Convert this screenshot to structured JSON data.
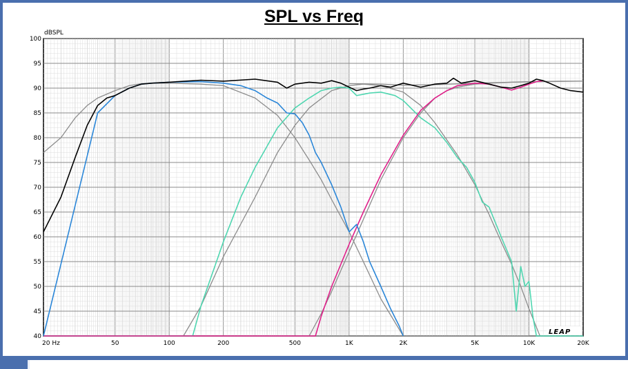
{
  "chart_data": {
    "type": "line",
    "title": "SPL vs Freq",
    "ylabel": "dBSPL",
    "xlabel": "",
    "x_scale": "log",
    "xlim": [
      20,
      20000
    ],
    "ylim": [
      40,
      100
    ],
    "x_ticks": [
      {
        "value": 20,
        "label": "20  Hz"
      },
      {
        "value": 50,
        "label": "50"
      },
      {
        "value": 100,
        "label": "100"
      },
      {
        "value": 200,
        "label": "200"
      },
      {
        "value": 500,
        "label": "500"
      },
      {
        "value": 1000,
        "label": "1K"
      },
      {
        "value": 2000,
        "label": "2K"
      },
      {
        "value": 5000,
        "label": "5K"
      },
      {
        "value": 10000,
        "label": "10K"
      },
      {
        "value": 20000,
        "label": "20K"
      }
    ],
    "y_ticks": [
      40,
      45,
      50,
      55,
      60,
      65,
      70,
      75,
      80,
      85,
      90,
      95,
      100
    ],
    "grid": true,
    "watermark": "LEAP",
    "colors": {
      "total": "#000000",
      "woofer": "#2a86d8",
      "midrange": "#4fd6b0",
      "tweeter": "#e0208a",
      "target": "#8c8c8c"
    },
    "series": [
      {
        "key": "total",
        "color": "#000000",
        "x": [
          20,
          25,
          30,
          35,
          40,
          45,
          50,
          60,
          70,
          80,
          100,
          150,
          200,
          300,
          400,
          450,
          500,
          600,
          700,
          800,
          900,
          1000,
          1100,
          1200,
          1300,
          1500,
          1700,
          2000,
          2500,
          3000,
          3500,
          3800,
          4200,
          5000,
          6000,
          7000,
          8000,
          9000,
          10000,
          11000,
          12000,
          13000,
          15000,
          17000,
          20000
        ],
        "y": [
          61,
          68,
          76,
          82.5,
          86.5,
          88,
          88.5,
          90,
          90.8,
          91,
          91.2,
          91.6,
          91.4,
          91.8,
          91.2,
          90,
          90.8,
          91.2,
          91,
          91.5,
          91,
          90.2,
          89.5,
          89.8,
          90,
          90.5,
          90.2,
          91,
          90.2,
          90.8,
          91,
          92,
          91,
          91.5,
          90.8,
          90.2,
          90,
          90.5,
          91,
          91.8,
          91.5,
          91,
          90,
          89.5,
          89.2
        ]
      },
      {
        "key": "woofer",
        "color": "#2a86d8",
        "x": [
          20,
          40,
          50,
          60,
          70,
          80,
          100,
          150,
          200,
          250,
          300,
          350,
          400,
          450,
          500,
          550,
          600,
          650,
          700,
          800,
          900,
          1000,
          1100,
          1200,
          1300,
          1500,
          1700,
          1900,
          2000
        ],
        "y": [
          40,
          85,
          88.5,
          90,
          90.8,
          91,
          91.2,
          91.3,
          91,
          90.5,
          89.5,
          88,
          87,
          85,
          84.8,
          83,
          80.5,
          77,
          75,
          70.5,
          66,
          61,
          62.5,
          59,
          55,
          50,
          45.5,
          42,
          40
        ]
      },
      {
        "key": "midrange",
        "color": "#4fd6b0",
        "x": [
          20,
          135,
          150,
          200,
          250,
          300,
          400,
          500,
          600,
          700,
          800,
          900,
          1000,
          1100,
          1300,
          1500,
          1800,
          2000,
          2500,
          3000,
          3500,
          4000,
          4500,
          5000,
          5500,
          6000,
          7000,
          8000,
          8500,
          9000,
          9500,
          10000,
          10500,
          11000,
          20000
        ],
        "y": [
          40,
          40,
          46,
          59,
          68,
          74,
          82,
          86,
          88,
          89.5,
          90,
          90.2,
          90,
          88.5,
          89,
          89.2,
          88.5,
          87.5,
          84,
          82,
          79,
          76,
          74,
          71,
          67,
          66,
          60,
          55,
          45,
          54,
          50,
          51,
          44,
          40,
          40
        ]
      },
      {
        "key": "tweeter",
        "color": "#e0208a",
        "x": [
          20,
          650,
          700,
          800,
          1000,
          1200,
          1500,
          2000,
          2500,
          3000,
          3500,
          4000,
          5000,
          6000,
          7000,
          8000,
          9000,
          10000,
          11000,
          12000
        ],
        "y": [
          40,
          40,
          44,
          50,
          58.5,
          65,
          72.5,
          80.5,
          85.5,
          88,
          89.5,
          90.5,
          91,
          90.8,
          90.2,
          89.6,
          90.2,
          90.8,
          91.3,
          91.5
        ]
      },
      {
        "key": "target-lowpass",
        "color": "#8c8c8c",
        "x": [
          20,
          25,
          30,
          35,
          40,
          50,
          60,
          70,
          80,
          100,
          150,
          200,
          300,
          400,
          500,
          600,
          700,
          800,
          1000,
          1200,
          1500,
          2000
        ],
        "y": [
          77,
          80,
          84,
          86.5,
          88,
          89.5,
          90.5,
          90.9,
          91,
          91,
          90.8,
          90.5,
          88,
          84.5,
          80,
          75.5,
          71.5,
          67.5,
          61,
          55,
          47.5,
          40
        ]
      },
      {
        "key": "target-bandpass",
        "color": "#8c8c8c",
        "x": [
          120,
          150,
          200,
          300,
          400,
          500,
          600,
          800,
          1000,
          1200,
          1500,
          2000,
          2500,
          3000,
          4000,
          5000,
          6000,
          7000,
          8000,
          9000,
          10000,
          11500
        ],
        "y": [
          40,
          46,
          56,
          68,
          77,
          82.5,
          86,
          89.5,
          90.5,
          90.8,
          90.5,
          89.2,
          86.5,
          83,
          76.5,
          70.5,
          64.5,
          59,
          54.5,
          50,
          45.5,
          40
        ]
      },
      {
        "key": "target-highpass",
        "color": "#8c8c8c",
        "x": [
          600,
          700,
          800,
          1000,
          1200,
          1500,
          2000,
          2500,
          3000,
          3500,
          4000,
          5000,
          6000,
          8000,
          10000,
          15000,
          20000
        ],
        "y": [
          40,
          44.5,
          49,
          57,
          63.5,
          71.5,
          80,
          85,
          88,
          89.5,
          90.2,
          90.8,
          91,
          91.2,
          91.3,
          91.4,
          91.4
        ]
      },
      {
        "key": "target-sum",
        "color": "#8c8c8c",
        "x": [
          1000,
          1500,
          2000,
          3000,
          5000,
          8000,
          12000,
          20000
        ],
        "y": [
          90.9,
          90.8,
          90.6,
          90.7,
          91,
          91.2,
          91.3,
          91.4
        ]
      }
    ]
  }
}
